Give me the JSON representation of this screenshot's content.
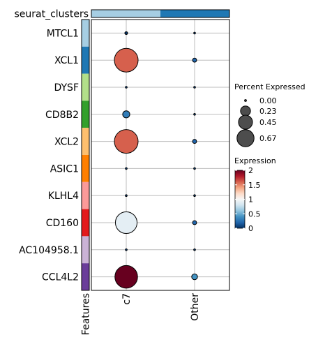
{
  "chart_data": {
    "type": "dotplot",
    "top_annotation_label": "seurat_clusters",
    "left_annotation_label": "Features",
    "features": [
      "MTCL1",
      "XCL1",
      "DYSF",
      "CD8B2",
      "XCL2",
      "ASIC1",
      "KLHL4",
      "CD160",
      "AC104958.1",
      "CCL4L2"
    ],
    "feature_colors": [
      "#a6cee3",
      "#1f78b4",
      "#b2df8a",
      "#33a02c",
      "#fdbf6f",
      "#ff7f00",
      "#fb9a99",
      "#e31a1c",
      "#cab2d6",
      "#6a3d9a"
    ],
    "groups": [
      "c7",
      "Other"
    ],
    "group_colors": [
      "#a6cee3",
      "#1f78b4"
    ],
    "percent_expressed": [
      [
        0.01,
        0.0
      ],
      [
        0.67,
        0.02
      ],
      [
        0.0,
        0.0
      ],
      [
        0.06,
        0.0
      ],
      [
        0.67,
        0.02
      ],
      [
        0.0,
        0.0
      ],
      [
        0.0,
        0.0
      ],
      [
        0.56,
        0.02
      ],
      [
        0.0,
        0.0
      ],
      [
        0.61,
        0.04
      ]
    ],
    "expression": [
      [
        0.0,
        0.0
      ],
      [
        1.6,
        0.2
      ],
      [
        0.0,
        0.0
      ],
      [
        0.3,
        0.0
      ],
      [
        1.6,
        0.2
      ],
      [
        0.0,
        0.0
      ],
      [
        0.0,
        0.0
      ],
      [
        0.9,
        0.2
      ],
      [
        0.0,
        0.0
      ],
      [
        2.0,
        0.4
      ]
    ],
    "size_legend": {
      "title": "Percent Expressed",
      "breaks": [
        0.0,
        0.23,
        0.45,
        0.67
      ],
      "labels": [
        "0.00",
        "0.23",
        "0.45",
        "0.67"
      ]
    },
    "color_legend": {
      "title": "Expression",
      "range": [
        0,
        2
      ],
      "breaks": [
        0,
        0.5,
        1,
        1.5,
        2
      ],
      "labels": [
        "0",
        "0.5",
        "1",
        "1.5",
        "2"
      ],
      "colors": [
        "#053061",
        "#2166ac",
        "#4393c3",
        "#92c5de",
        "#d1e5f0",
        "#f7f7f7",
        "#fddbc7",
        "#f4a582",
        "#d6604d",
        "#b2182b",
        "#67001f"
      ]
    },
    "grid": true
  }
}
